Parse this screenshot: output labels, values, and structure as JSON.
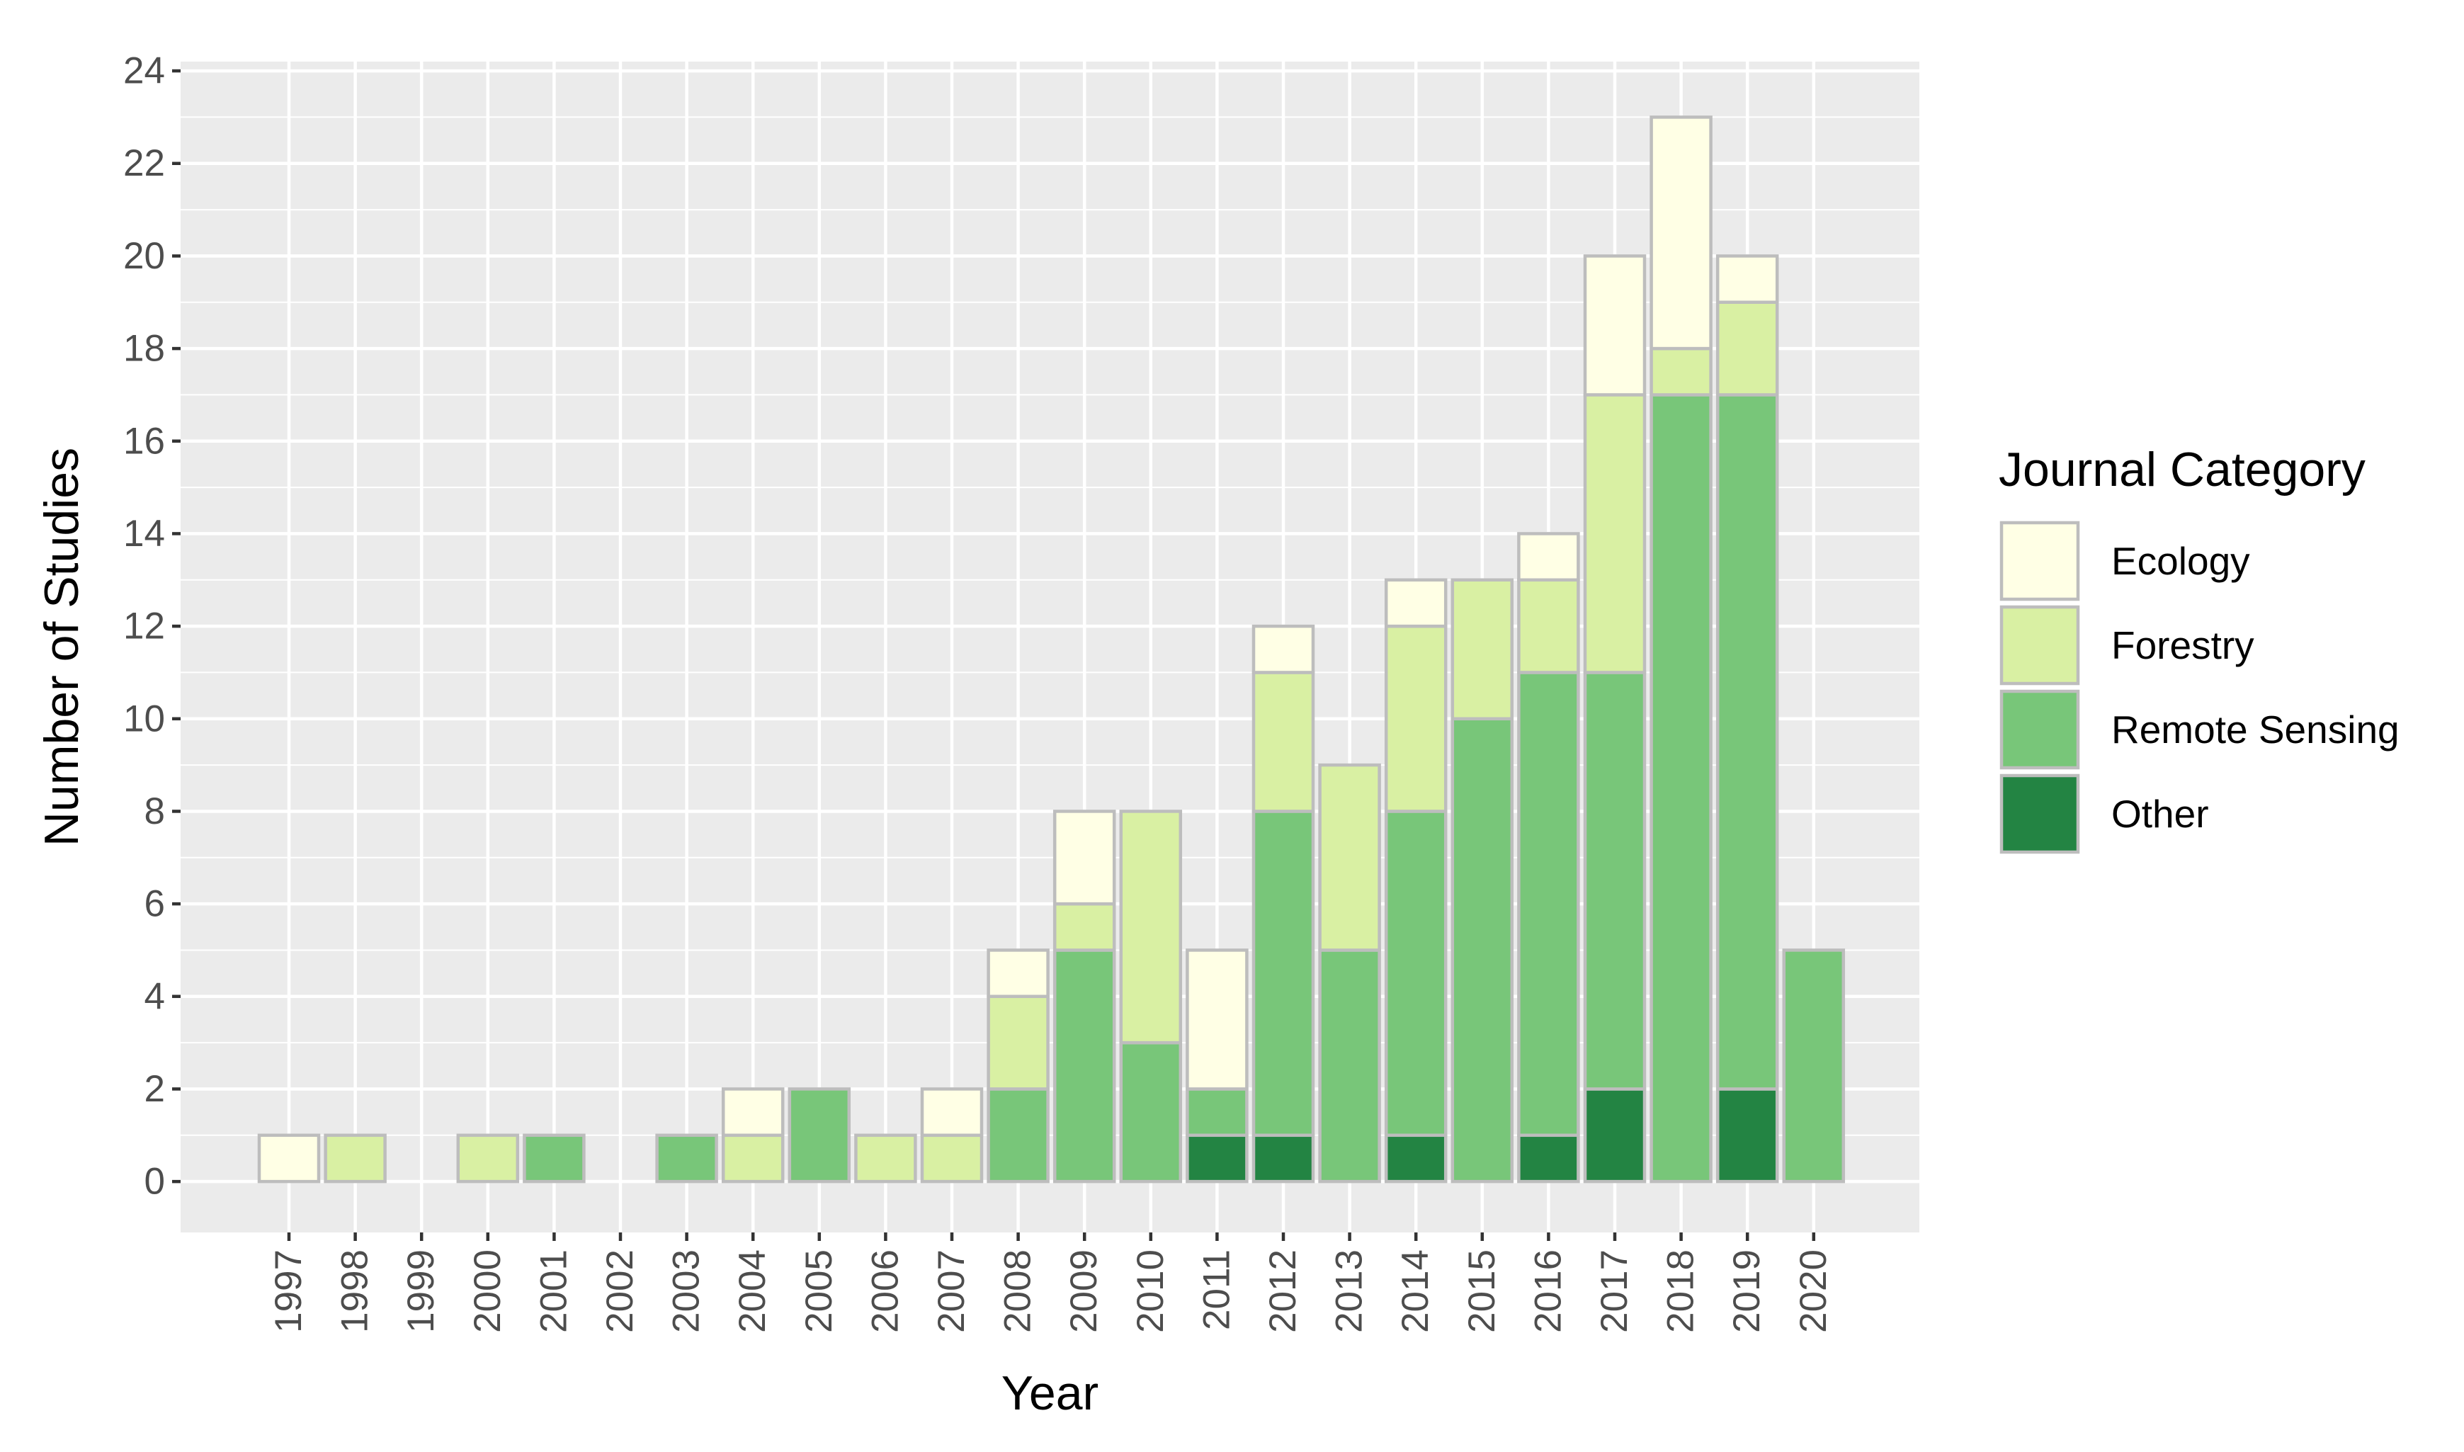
{
  "chart_data": {
    "type": "bar",
    "stacked": true,
    "title": "",
    "xlabel": "Year",
    "ylabel": "Number of Studies",
    "ylim": [
      -1.1,
      24.2
    ],
    "yticks": [
      0,
      2,
      4,
      6,
      8,
      10,
      12,
      14,
      16,
      18,
      20,
      22,
      24
    ],
    "grid": true,
    "legend_position": "right",
    "legend_title": "Journal Category",
    "categories": [
      "1997",
      "1998",
      "1999",
      "2000",
      "2001",
      "2002",
      "2003",
      "2004",
      "2005",
      "2006",
      "2007",
      "2008",
      "2009",
      "2010",
      "2011",
      "2012",
      "2013",
      "2014",
      "2015",
      "2016",
      "2017",
      "2018",
      "2019",
      "2020"
    ],
    "series": [
      {
        "name": "Other",
        "color": "#238443",
        "values": [
          0,
          0,
          0,
          0,
          0,
          0,
          0,
          0,
          0,
          0,
          0,
          0,
          0,
          0,
          1,
          1,
          0,
          1,
          0,
          1,
          2,
          0,
          2,
          0
        ]
      },
      {
        "name": "Remote Sensing",
        "color": "#78c679",
        "values": [
          0,
          0,
          0,
          0,
          1,
          0,
          1,
          0,
          2,
          0,
          0,
          2,
          5,
          3,
          1,
          7,
          5,
          7,
          10,
          10,
          9,
          17,
          15,
          5
        ]
      },
      {
        "name": "Forestry",
        "color": "#d9f0a3",
        "values": [
          0,
          1,
          0,
          1,
          0,
          0,
          0,
          1,
          0,
          1,
          1,
          2,
          1,
          5,
          0,
          3,
          4,
          4,
          3,
          2,
          6,
          1,
          2,
          0
        ]
      },
      {
        "name": "Ecology",
        "color": "#ffffe5",
        "values": [
          1,
          0,
          0,
          0,
          0,
          0,
          0,
          1,
          0,
          0,
          1,
          1,
          2,
          0,
          3,
          1,
          0,
          1,
          0,
          1,
          3,
          5,
          1,
          0
        ]
      }
    ],
    "legend_order": [
      "Ecology",
      "Forestry",
      "Remote Sensing",
      "Other"
    ],
    "colors": {
      "panel_background": "#ebebeb",
      "grid": "#ffffff",
      "bar_outline": "#bdbdbd",
      "axis_text": "#4d4d4d",
      "title_text": "#000000"
    }
  }
}
